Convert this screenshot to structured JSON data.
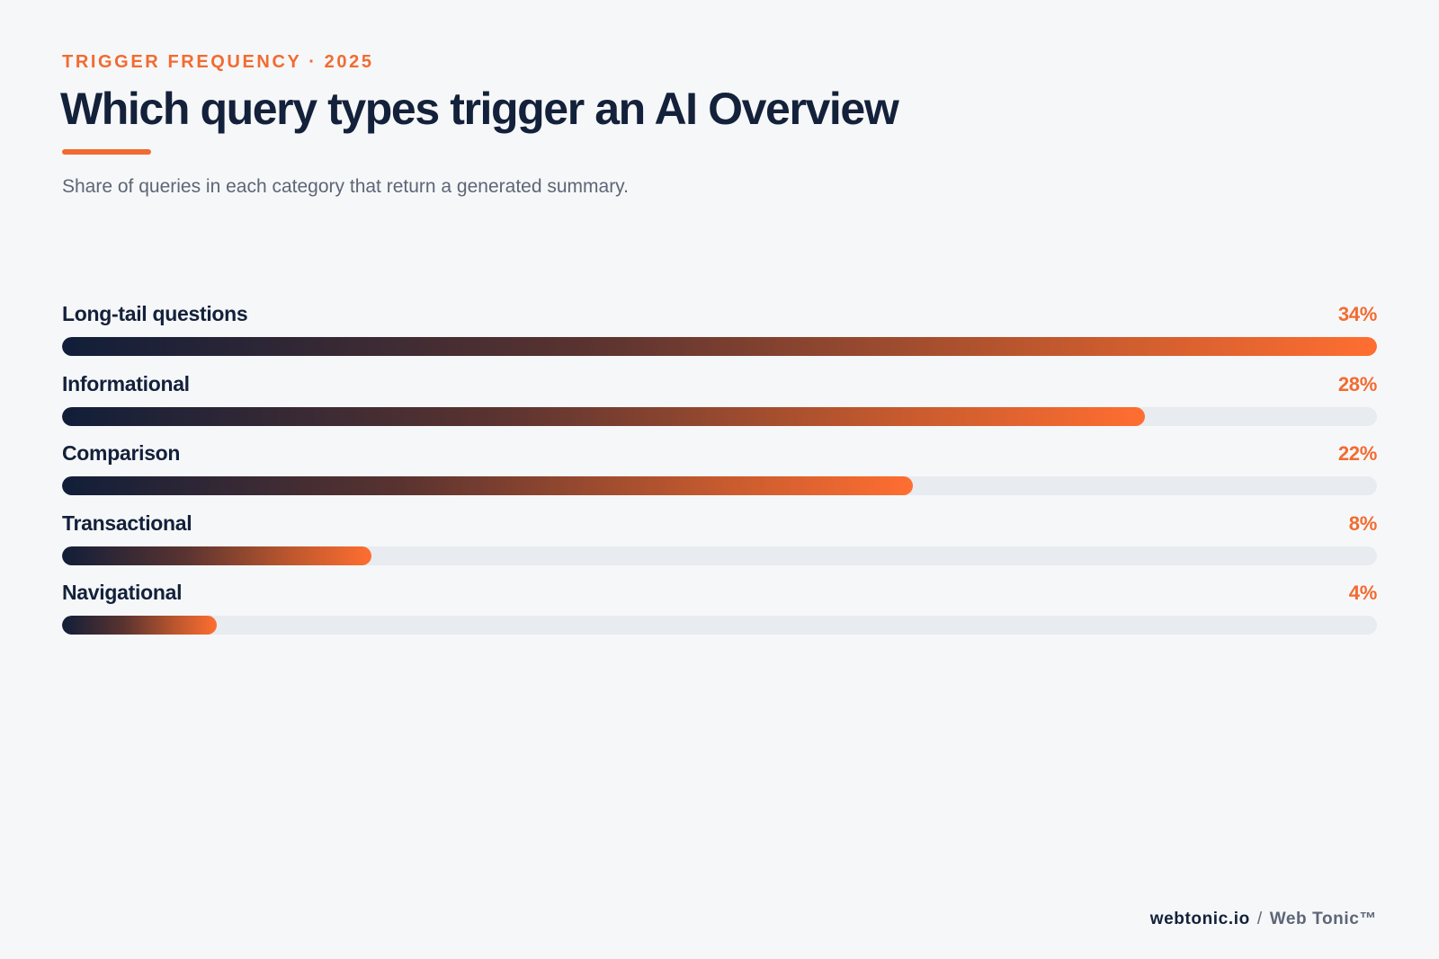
{
  "header": {
    "eyebrow": "TRIGGER FREQUENCY · 2025",
    "title": "Which query types trigger an AI Overview",
    "subtitle": "Share of queries in each category that return a generated summary."
  },
  "colors": {
    "accent": "#f26b30",
    "navy": "#13213a",
    "track": "#e8ebef"
  },
  "chart_data": {
    "type": "bar",
    "orientation": "horizontal",
    "title": "Which query types trigger an AI Overview",
    "subtitle": "Share of queries in each category that return a generated summary.",
    "categories": [
      "Long-tail questions",
      "Informational",
      "Comparison",
      "Transactional",
      "Navigational"
    ],
    "values": [
      34,
      28,
      22,
      8,
      4
    ],
    "value_labels": [
      "34%",
      "28%",
      "22%",
      "8%",
      "4%"
    ],
    "xlim": [
      0,
      34
    ],
    "grid": false,
    "legend": "none"
  },
  "footer": {
    "domain": "webtonic.io",
    "separator": "/",
    "brand": "Web Tonic™"
  }
}
